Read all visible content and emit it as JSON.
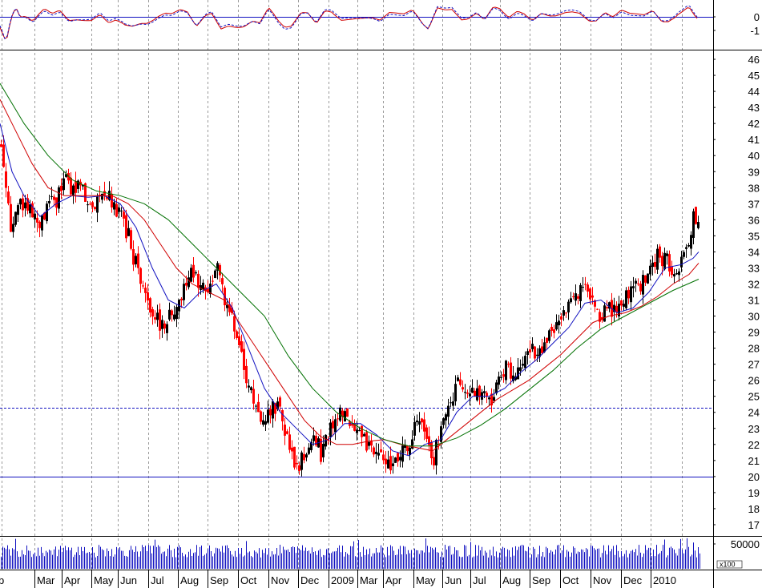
{
  "chart_data": {
    "type": "candlestick",
    "x_axis": {
      "labels": [
        "Mar",
        "Apr",
        "May",
        "Jun",
        "Jul",
        "Aug",
        "Sep",
        "Oct",
        "Nov",
        "Dec",
        "2009",
        "Mar",
        "Apr",
        "May",
        "Jun",
        "Jul",
        "Aug",
        "Sep",
        "Oct",
        "Nov",
        "Dec",
        "2010"
      ]
    },
    "oscillator": {
      "y_ticks": [
        "0",
        "-1"
      ],
      "zero_line": 0,
      "series": [
        {
          "style": "solid",
          "color": "#d00000"
        },
        {
          "style": "dashed",
          "color": "#1010c0"
        }
      ]
    },
    "price": {
      "y_ticks": [
        46,
        45,
        44,
        43,
        42,
        41,
        40,
        39,
        38,
        37,
        36,
        35,
        34,
        33,
        32,
        31,
        30,
        29,
        28,
        27,
        26,
        25,
        24,
        23,
        22,
        21,
        20,
        19,
        18,
        17
      ],
      "ylim": [
        16.3,
        46.6
      ],
      "reference_lines": [
        {
          "value": 24.3,
          "style": "dashed",
          "color": "#1010c0"
        },
        {
          "value": 20.0,
          "style": "solid",
          "color": "#1010c0"
        }
      ],
      "close_path": [
        [
          0,
          41.0
        ],
        [
          8,
          38.0
        ],
        [
          14,
          35.0
        ],
        [
          20,
          37.5
        ],
        [
          28,
          36.5
        ],
        [
          34,
          37.0
        ],
        [
          40,
          36.0
        ],
        [
          50,
          35.5
        ],
        [
          60,
          36.8
        ],
        [
          70,
          37.2
        ],
        [
          80,
          38.5
        ],
        [
          90,
          38.0
        ],
        [
          100,
          37.8
        ],
        [
          110,
          37.5
        ],
        [
          120,
          37.2
        ],
        [
          130,
          38.0
        ],
        [
          140,
          37.0
        ],
        [
          150,
          36.5
        ],
        [
          160,
          35.0
        ],
        [
          170,
          33.0
        ],
        [
          180,
          31.5
        ],
        [
          190,
          30.0
        ],
        [
          200,
          29.5
        ],
        [
          210,
          30.0
        ],
        [
          220,
          30.5
        ],
        [
          230,
          32.0
        ],
        [
          240,
          33.0
        ],
        [
          250,
          31.5
        ],
        [
          260,
          32.0
        ],
        [
          270,
          33.0
        ],
        [
          280,
          31.0
        ],
        [
          290,
          29.5
        ],
        [
          300,
          27.5
        ],
        [
          310,
          25.5
        ],
        [
          320,
          24.5
        ],
        [
          330,
          23.0
        ],
        [
          340,
          24.5
        ],
        [
          350,
          24.0
        ],
        [
          360,
          22.0
        ],
        [
          370,
          20.5
        ],
        [
          380,
          21.5
        ],
        [
          390,
          22.5
        ],
        [
          400,
          21.5
        ],
        [
          410,
          23.0
        ],
        [
          420,
          24.0
        ],
        [
          430,
          23.5
        ],
        [
          440,
          23.0
        ],
        [
          450,
          22.5
        ],
        [
          460,
          22.0
        ],
        [
          470,
          21.5
        ],
        [
          480,
          20.5
        ],
        [
          490,
          21.0
        ],
        [
          500,
          21.5
        ],
        [
          510,
          22.0
        ],
        [
          520,
          23.5
        ],
        [
          530,
          23.0
        ],
        [
          540,
          21.0
        ],
        [
          550,
          23.0
        ],
        [
          560,
          24.5
        ],
        [
          570,
          26.0
        ],
        [
          580,
          25.5
        ],
        [
          590,
          25.0
        ],
        [
          600,
          25.5
        ],
        [
          610,
          24.5
        ],
        [
          620,
          26.0
        ],
        [
          630,
          27.0
        ],
        [
          640,
          26.5
        ],
        [
          650,
          27.5
        ],
        [
          660,
          28.0
        ],
        [
          670,
          27.5
        ],
        [
          680,
          28.5
        ],
        [
          690,
          29.0
        ],
        [
          700,
          29.5
        ],
        [
          710,
          30.5
        ],
        [
          720,
          31.5
        ],
        [
          730,
          32.0
        ],
        [
          740,
          31.0
        ],
        [
          750,
          30.0
        ],
        [
          760,
          30.5
        ],
        [
          770,
          30.0
        ],
        [
          780,
          31.0
        ],
        [
          790,
          31.5
        ],
        [
          800,
          32.0
        ],
        [
          810,
          32.5
        ],
        [
          820,
          34.0
        ],
        [
          830,
          33.5
        ],
        [
          840,
          33.0
        ],
        [
          850,
          33.5
        ],
        [
          860,
          35.0
        ],
        [
          866,
          36.3
        ],
        [
          872,
          35.5
        ]
      ],
      "moving_averages": [
        {
          "color": "#1010c0",
          "points": [
            [
              0,
              42.0
            ],
            [
              15,
              39.0
            ],
            [
              30,
              37.5
            ],
            [
              50,
              36.2
            ],
            [
              70,
              37.0
            ],
            [
              90,
              37.5
            ],
            [
              110,
              37.4
            ],
            [
              130,
              37.5
            ],
            [
              150,
              37.0
            ],
            [
              170,
              35.5
            ],
            [
              190,
              33.0
            ],
            [
              210,
              31.0
            ],
            [
              230,
              30.5
            ],
            [
              250,
              31.5
            ],
            [
              270,
              32.0
            ],
            [
              290,
              30.5
            ],
            [
              310,
              28.0
            ],
            [
              330,
              25.5
            ],
            [
              350,
              24.0
            ],
            [
              370,
              23.0
            ],
            [
              390,
              22.0
            ],
            [
              410,
              22.3
            ],
            [
              430,
              23.3
            ],
            [
              450,
              23.3
            ],
            [
              470,
              22.6
            ],
            [
              490,
              21.6
            ],
            [
              510,
              21.3
            ],
            [
              530,
              22.0
            ],
            [
              550,
              22.3
            ],
            [
              570,
              24.0
            ],
            [
              590,
              25.0
            ],
            [
              610,
              25.0
            ],
            [
              630,
              25.5
            ],
            [
              650,
              26.5
            ],
            [
              670,
              27.3
            ],
            [
              690,
              28.3
            ],
            [
              710,
              29.3
            ],
            [
              730,
              30.8
            ],
            [
              750,
              31.0
            ],
            [
              770,
              30.2
            ],
            [
              790,
              30.5
            ],
            [
              810,
              31.5
            ],
            [
              830,
              33.0
            ],
            [
              850,
              33.2
            ],
            [
              865,
              33.6
            ],
            [
              872,
              34.0
            ]
          ]
        },
        {
          "color": "#d00000",
          "points": [
            [
              0,
              43.5
            ],
            [
              20,
              41.5
            ],
            [
              40,
              39.5
            ],
            [
              60,
              38.0
            ],
            [
              80,
              37.5
            ],
            [
              100,
              37.5
            ],
            [
              120,
              37.5
            ],
            [
              140,
              37.5
            ],
            [
              160,
              37.0
            ],
            [
              180,
              36.0
            ],
            [
              200,
              34.5
            ],
            [
              220,
              33.0
            ],
            [
              240,
              32.0
            ],
            [
              260,
              31.5
            ],
            [
              280,
              31.0
            ],
            [
              300,
              29.5
            ],
            [
              320,
              28.0
            ],
            [
              340,
              26.5
            ],
            [
              360,
              25.0
            ],
            [
              380,
              23.5
            ],
            [
              400,
              22.5
            ],
            [
              420,
              22.0
            ],
            [
              440,
              22.0
            ],
            [
              460,
              22.2
            ],
            [
              480,
              22.3
            ],
            [
              500,
              22.0
            ],
            [
              520,
              21.8
            ],
            [
              540,
              21.6
            ],
            [
              560,
              22.4
            ],
            [
              580,
              23.2
            ],
            [
              600,
              24.0
            ],
            [
              620,
              24.8
            ],
            [
              640,
              25.4
            ],
            [
              660,
              26.0
            ],
            [
              680,
              26.8
            ],
            [
              700,
              27.6
            ],
            [
              720,
              28.6
            ],
            [
              740,
              29.6
            ],
            [
              760,
              30.0
            ],
            [
              780,
              30.2
            ],
            [
              800,
              30.6
            ],
            [
              820,
              31.2
            ],
            [
              840,
              32.0
            ],
            [
              860,
              32.6
            ],
            [
              872,
              33.3
            ]
          ]
        },
        {
          "color": "#007000",
          "points": [
            [
              0,
              44.5
            ],
            [
              30,
              42.0
            ],
            [
              60,
              40.0
            ],
            [
              90,
              38.5
            ],
            [
              120,
              37.8
            ],
            [
              150,
              37.5
            ],
            [
              180,
              37.0
            ],
            [
              210,
              36.0
            ],
            [
              240,
              34.5
            ],
            [
              270,
              33.0
            ],
            [
              300,
              31.5
            ],
            [
              330,
              30.0
            ],
            [
              360,
              27.5
            ],
            [
              390,
              25.5
            ],
            [
              420,
              24.0
            ],
            [
              450,
              23.0
            ],
            [
              480,
              22.3
            ],
            [
              510,
              21.9
            ],
            [
              540,
              21.9
            ],
            [
              570,
              22.4
            ],
            [
              600,
              23.2
            ],
            [
              630,
              24.2
            ],
            [
              660,
              25.4
            ],
            [
              690,
              26.6
            ],
            [
              720,
              28.0
            ],
            [
              750,
              29.2
            ],
            [
              780,
              30.0
            ],
            [
              810,
              30.8
            ],
            [
              840,
              31.6
            ],
            [
              872,
              32.3
            ]
          ]
        }
      ]
    },
    "volume": {
      "y_tick": "50000",
      "unit_label": "x100",
      "bars_color": "#1010c0"
    }
  }
}
